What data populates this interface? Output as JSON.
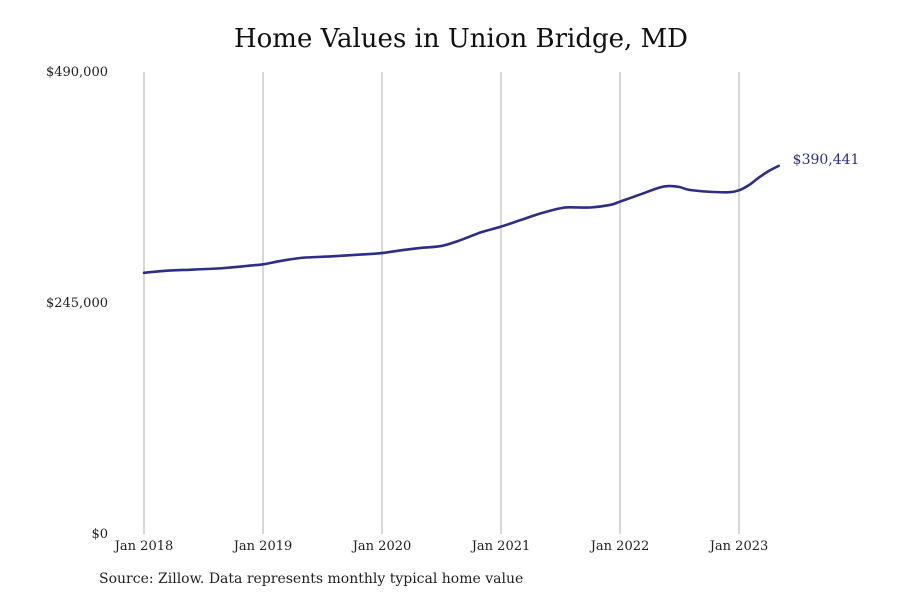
{
  "chart_data": {
    "type": "line",
    "title": "Home Values in Union Bridge, MD",
    "xlabel": "",
    "ylabel": "",
    "ylim": [
      0,
      490000
    ],
    "y_ticks": [
      {
        "value": 0,
        "label": "$0"
      },
      {
        "value": 245000,
        "label": "$245,000"
      },
      {
        "value": 490000,
        "label": "$490,000"
      }
    ],
    "x_ticks": [
      {
        "value": "2018-01",
        "label": "Jan 2018"
      },
      {
        "value": "2019-01",
        "label": "Jan 2019"
      },
      {
        "value": "2020-01",
        "label": "Jan 2020"
      },
      {
        "value": "2021-01",
        "label": "Jan 2021"
      },
      {
        "value": "2022-01",
        "label": "Jan 2022"
      },
      {
        "value": "2023-01",
        "label": "Jan 2023"
      }
    ],
    "grid": {
      "vertical": true,
      "horizontal": false
    },
    "legend": "none",
    "series": [
      {
        "color": "#2e2d8a",
        "end_label": "$390,441",
        "points": [
          {
            "x": "2018-01",
            "y": 277000
          },
          {
            "x": "2018-03",
            "y": 279000
          },
          {
            "x": "2018-06",
            "y": 280500
          },
          {
            "x": "2018-09",
            "y": 282000
          },
          {
            "x": "2018-12",
            "y": 285000
          },
          {
            "x": "2019-01",
            "y": 286000
          },
          {
            "x": "2019-03",
            "y": 290000
          },
          {
            "x": "2019-05",
            "y": 293000
          },
          {
            "x": "2019-08",
            "y": 294500
          },
          {
            "x": "2019-11",
            "y": 296500
          },
          {
            "x": "2020-01",
            "y": 298000
          },
          {
            "x": "2020-03",
            "y": 301000
          },
          {
            "x": "2020-05",
            "y": 303500
          },
          {
            "x": "2020-07",
            "y": 305500
          },
          {
            "x": "2020-09",
            "y": 312000
          },
          {
            "x": "2020-11",
            "y": 320000
          },
          {
            "x": "2021-01",
            "y": 326000
          },
          {
            "x": "2021-03",
            "y": 333000
          },
          {
            "x": "2021-05",
            "y": 340000
          },
          {
            "x": "2021-07",
            "y": 345500
          },
          {
            "x": "2021-08",
            "y": 346500
          },
          {
            "x": "2021-10",
            "y": 346300
          },
          {
            "x": "2021-12",
            "y": 349000
          },
          {
            "x": "2022-01",
            "y": 352500
          },
          {
            "x": "2022-03",
            "y": 360000
          },
          {
            "x": "2022-05",
            "y": 367500
          },
          {
            "x": "2022-06",
            "y": 369000
          },
          {
            "x": "2022-07",
            "y": 368000
          },
          {
            "x": "2022-08",
            "y": 365000
          },
          {
            "x": "2022-10",
            "y": 363000
          },
          {
            "x": "2022-12",
            "y": 362500
          },
          {
            "x": "2023-01",
            "y": 364500
          },
          {
            "x": "2023-02",
            "y": 370000
          },
          {
            "x": "2023-03",
            "y": 378000
          },
          {
            "x": "2023-04",
            "y": 385000
          },
          {
            "x": "2023-05",
            "y": 390441
          }
        ]
      }
    ],
    "source": "Source: Zillow. Data represents monthly typical home value"
  },
  "colors": {
    "line": "#2e2d8a",
    "grid": "#b0b0b0",
    "text": "#222222"
  }
}
